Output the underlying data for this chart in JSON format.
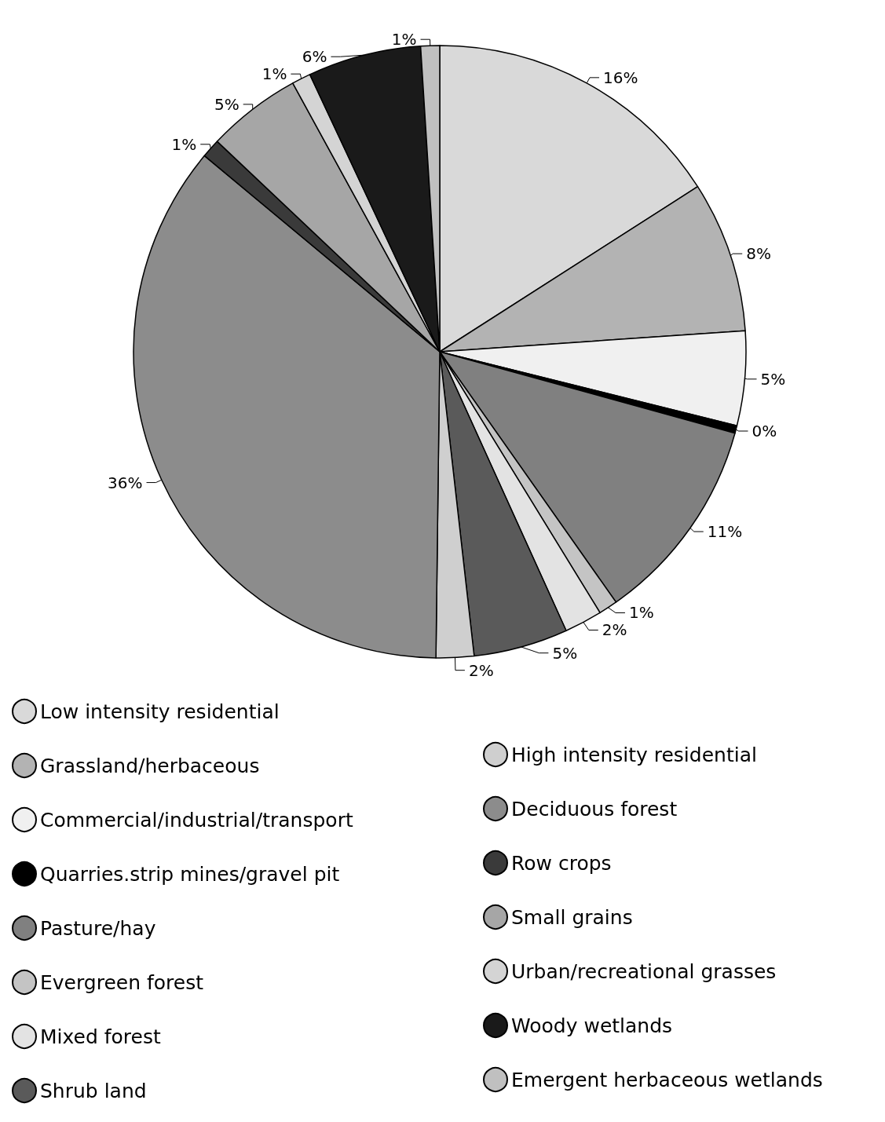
{
  "chart_data": {
    "type": "pie",
    "categories": [
      "Low intensity residential",
      "Grassland/herbaceous",
      "Commercial/industrial/transport",
      "Quarries.strip mines/gravel pit",
      "Pasture/hay",
      "Evergreen forest",
      "Mixed forest",
      "Shrub land",
      "High intensity residential",
      "Deciduous forest",
      "Row crops",
      "Small grains",
      "Urban/recreational grasses",
      "Woody wetlands",
      "Emergent herbaceous wetlands"
    ],
    "values": [
      16,
      8,
      5,
      0.4,
      11,
      1,
      2,
      5,
      2,
      36,
      1,
      5,
      1,
      6,
      1
    ],
    "value_labels": [
      "16%",
      "8%",
      "5%",
      "0%",
      "11%",
      "1%",
      "2%",
      "5%",
      "2%",
      "36%",
      "1%",
      "5%",
      "1%",
      "6%",
      "1%"
    ],
    "colors": [
      "#d9d9d9",
      "#b3b3b3",
      "#f0f0f0",
      "#000000",
      "#808080",
      "#c4c4c4",
      "#e3e3e3",
      "#5a5a5a",
      "#cfcfcf",
      "#8c8c8c",
      "#3a3a3a",
      "#a6a6a6",
      "#d4d4d4",
      "#1a1a1a",
      "#c0c0c0"
    ],
    "legend": "bottom"
  }
}
